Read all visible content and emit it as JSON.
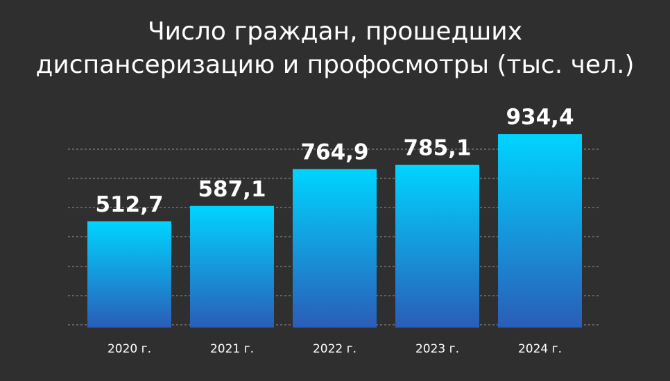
{
  "chart_data": {
    "type": "bar",
    "title_lines": [
      "Число граждан, прошедших",
      "диспансеризацию и профосмотры (тыс. чел.)"
    ],
    "categories": [
      "2020 г.",
      "2021 г.",
      "2022 г.",
      "2023 г.",
      "2024 г."
    ],
    "values": [
      512.7,
      587.1,
      764.9,
      785.1,
      934.4
    ],
    "value_labels": [
      "512,7",
      "587,1",
      "764,9",
      "785,1",
      "934,4"
    ],
    "grid": true,
    "colors": {
      "background": "#2f2f2f",
      "bar_top": "#00d4ff",
      "bar_bottom": "#2a5db8",
      "grid": "#9a9a9a"
    }
  }
}
